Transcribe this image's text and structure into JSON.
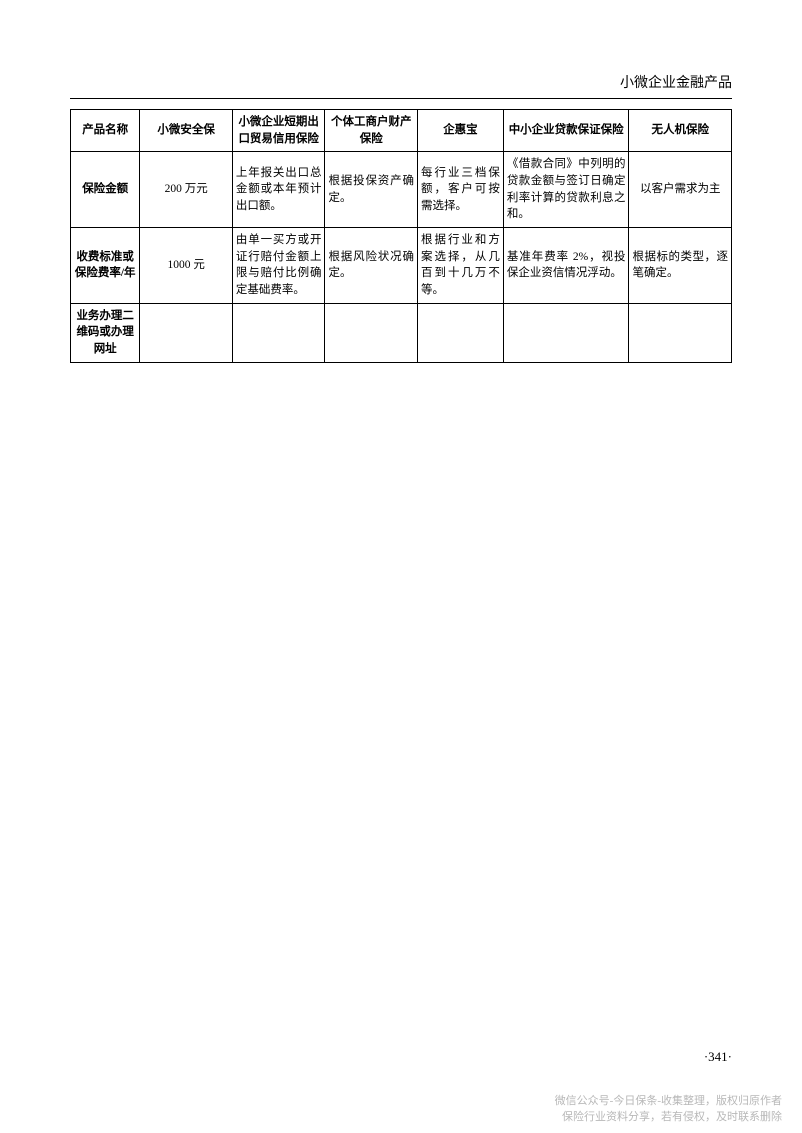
{
  "header": {
    "title": "小微企业金融产品"
  },
  "table": {
    "columns": [
      "产品名称",
      "小微安全保",
      "小微企业短期出口贸易信用保险",
      "个体工商户财产保险",
      "企惠宝",
      "中小企业贷款保证保险",
      "无人机保险"
    ],
    "rows": [
      {
        "label": "保险金额",
        "cells": [
          "200 万元",
          "上年报关出口总金额或本年预计出口额。",
          "根据投保资产确定。",
          "每行业三档保额，客户可按需选择。",
          "《借款合同》中列明的贷款金额与签订日确定利率计算的贷款利息之和。",
          "以客户需求为主"
        ]
      },
      {
        "label": "收费标准或保险费率/年",
        "cells": [
          "1000 元",
          "由单一买方或开证行赔付金额上限与赔付比例确定基础费率。",
          "根据风险状况确定。",
          "根据行业和方案选择，从几百到十几万不等。",
          "基准年费率 2%，视投保企业资信情况浮动。",
          "根据标的类型，逐笔确定。"
        ]
      },
      {
        "label": "业务办理二维码或办理网址",
        "cells": [
          "",
          "",
          "",
          "",
          "",
          ""
        ]
      }
    ]
  },
  "pageNumber": "·341·",
  "footer": {
    "line1": "微信公众号-今日保条-收集整理，版权归原作者",
    "line2": "保险行业资料分享，若有侵权，及时联系删除"
  }
}
